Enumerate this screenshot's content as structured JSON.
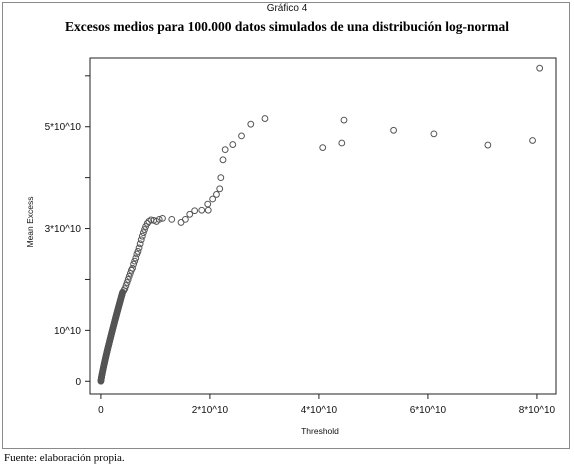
{
  "header": {
    "kicker": "Gráfico 4",
    "title": "Excesos medios para 100.000 datos simulados de una distribución log-normal"
  },
  "footer": {
    "source": "Fuente: elaboración propia."
  },
  "chart_data": {
    "type": "scatter",
    "title": "Excesos medios para 100.000 datos simulados de una distribución log-normal",
    "xlabel": "Threshold",
    "ylabel": "Mean Excess",
    "xlim": [
      -0.2,
      8.35
    ],
    "ylim": [
      -0.25,
      6.35
    ],
    "x_unit_note": "values in units of 10^10",
    "x_ticks": [
      {
        "value": 0,
        "label": "0"
      },
      {
        "value": 2,
        "label": "2*10^10"
      },
      {
        "value": 4,
        "label": "4*10^10"
      },
      {
        "value": 6,
        "label": "6*10^10"
      },
      {
        "value": 8,
        "label": "8*10^10"
      }
    ],
    "y_ticks": [
      {
        "value": 0,
        "label": "0"
      },
      {
        "value": 1,
        "label": "10^10"
      },
      {
        "value": 3,
        "label": "3*10^10"
      },
      {
        "value": 5,
        "label": "5*10^10"
      }
    ],
    "y_minor_ticks": [
      2,
      4,
      6
    ],
    "marker": "open-circle",
    "marker_color": "#555555",
    "dense_segments": [
      {
        "x0": 0.0,
        "x1": 0.4,
        "y0": 0.0,
        "y1": 1.75,
        "n": 180
      }
    ],
    "points": [
      [
        0.42,
        1.78
      ],
      [
        0.44,
        1.82
      ],
      [
        0.46,
        1.88
      ],
      [
        0.48,
        1.94
      ],
      [
        0.5,
        2.0
      ],
      [
        0.52,
        2.06
      ],
      [
        0.54,
        2.12
      ],
      [
        0.56,
        2.18
      ],
      [
        0.58,
        2.22
      ],
      [
        0.6,
        2.3
      ],
      [
        0.62,
        2.36
      ],
      [
        0.64,
        2.42
      ],
      [
        0.66,
        2.5
      ],
      [
        0.68,
        2.55
      ],
      [
        0.7,
        2.62
      ],
      [
        0.72,
        2.7
      ],
      [
        0.74,
        2.78
      ],
      [
        0.76,
        2.85
      ],
      [
        0.78,
        2.92
      ],
      [
        0.8,
        2.98
      ],
      [
        0.82,
        3.04
      ],
      [
        0.85,
        3.1
      ],
      [
        0.88,
        3.14
      ],
      [
        0.92,
        3.17
      ],
      [
        0.97,
        3.16
      ],
      [
        1.02,
        3.14
      ],
      [
        1.07,
        3.18
      ],
      [
        1.13,
        3.2
      ],
      [
        1.3,
        3.18
      ],
      [
        1.47,
        3.12
      ],
      [
        1.55,
        3.18
      ],
      [
        1.63,
        3.28
      ],
      [
        1.72,
        3.35
      ],
      [
        1.85,
        3.36
      ],
      [
        1.97,
        3.36
      ],
      [
        1.96,
        3.48
      ],
      [
        2.05,
        3.58
      ],
      [
        2.12,
        3.67
      ],
      [
        2.18,
        3.78
      ],
      [
        2.2,
        4.0
      ],
      [
        2.24,
        4.35
      ],
      [
        2.28,
        4.55
      ],
      [
        2.42,
        4.65
      ],
      [
        2.58,
        4.82
      ],
      [
        2.75,
        5.05
      ],
      [
        3.01,
        5.16
      ],
      [
        4.07,
        4.59
      ],
      [
        4.42,
        4.68
      ],
      [
        4.46,
        5.13
      ],
      [
        5.37,
        4.93
      ],
      [
        6.11,
        4.86
      ],
      [
        7.1,
        4.64
      ],
      [
        7.92,
        4.73
      ],
      [
        8.05,
        6.15
      ]
    ]
  }
}
